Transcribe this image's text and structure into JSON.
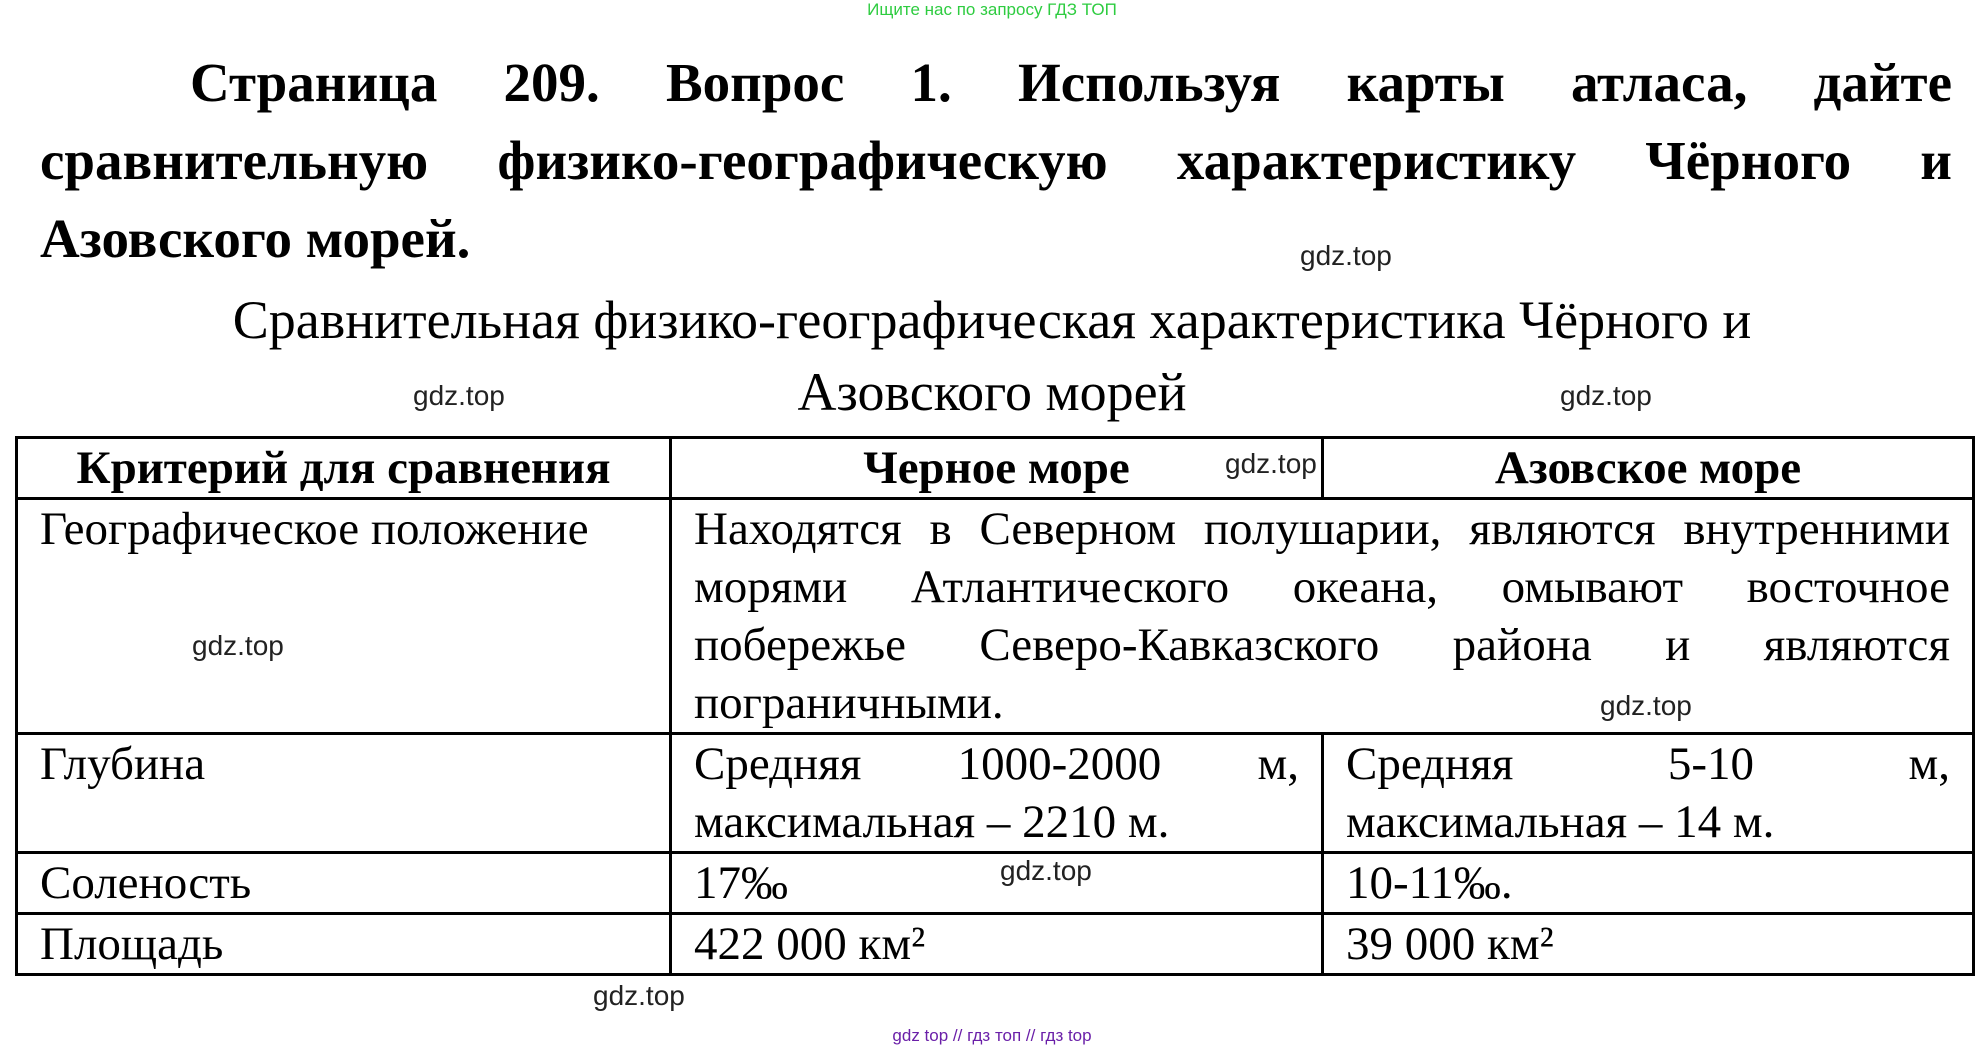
{
  "top_banner": "Ищите нас по запросу ГДЗ ТОП",
  "question": "Страница 209. Вопрос 1.   Используя карты атласа, дайте сравнительную физико-географическую характеристику Чёрного и Азовского морей.",
  "subtitle": {
    "line1": "Сравнительная физико-географическая характеристика Чёрного и",
    "line2": "Азовского морей"
  },
  "table": {
    "headers": [
      "Критерий для сравнения",
      "Черное море",
      "Азовское море"
    ],
    "rows": [
      {
        "criterion": "Географическое положение",
        "shared": "Находятся в Северном полушарии, являются внутренними морями Атлантического океана, омывают восточное побережье Северо-Кавказского района и являются пограничными."
      },
      {
        "criterion": "Глубина",
        "black": "Средняя 1000-2000 м, максимальная – 2210 м.",
        "azov": "Средняя 5-10 м, максимальная – 14 м."
      },
      {
        "criterion": "Соленость",
        "black": "17‰",
        "azov": "10-11‰."
      },
      {
        "criterion": "Площадь",
        "black": "422 000 км²",
        "azov": "39 000 км²"
      }
    ]
  },
  "watermark": "gdz.top",
  "bottom_banner": "gdz top // гдз топ // гдз top"
}
